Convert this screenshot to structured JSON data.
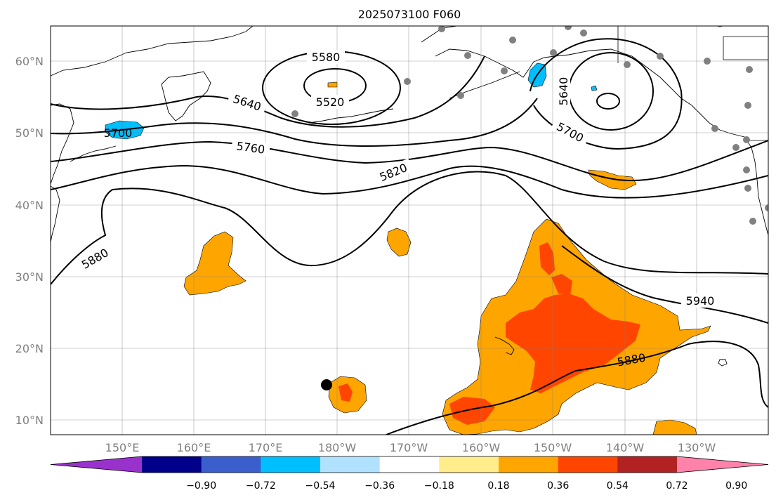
{
  "title": "2025073100 F060",
  "map": {
    "lon_labels": [
      "150°E",
      "160°E",
      "170°E",
      "180°W",
      "170°W",
      "160°W",
      "150°W",
      "140°W",
      "130°W"
    ],
    "lat_labels": [
      "60°N",
      "50°N",
      "40°N",
      "30°N",
      "20°N",
      "10°N"
    ],
    "contour_labels": [
      "5580",
      "5520",
      "5640",
      "5700",
      "5760",
      "5820",
      "5880",
      "5640",
      "5700",
      "5940",
      "5880"
    ],
    "grid": true
  },
  "colorbar": {
    "labels": [
      "−0.90",
      "−0.72",
      "−0.54",
      "−0.36",
      "−0.18",
      "0.18",
      "0.36",
      "0.54",
      "0.72",
      "0.90"
    ],
    "colors": [
      "#9932CC",
      "#00008B",
      "#3A5FCD",
      "#00BFFF",
      "#B0E2FF",
      "#FFFFFF",
      "#FFEC8B",
      "#FFA500",
      "#FF4500",
      "#B22222",
      "#FF82AB"
    ]
  }
}
